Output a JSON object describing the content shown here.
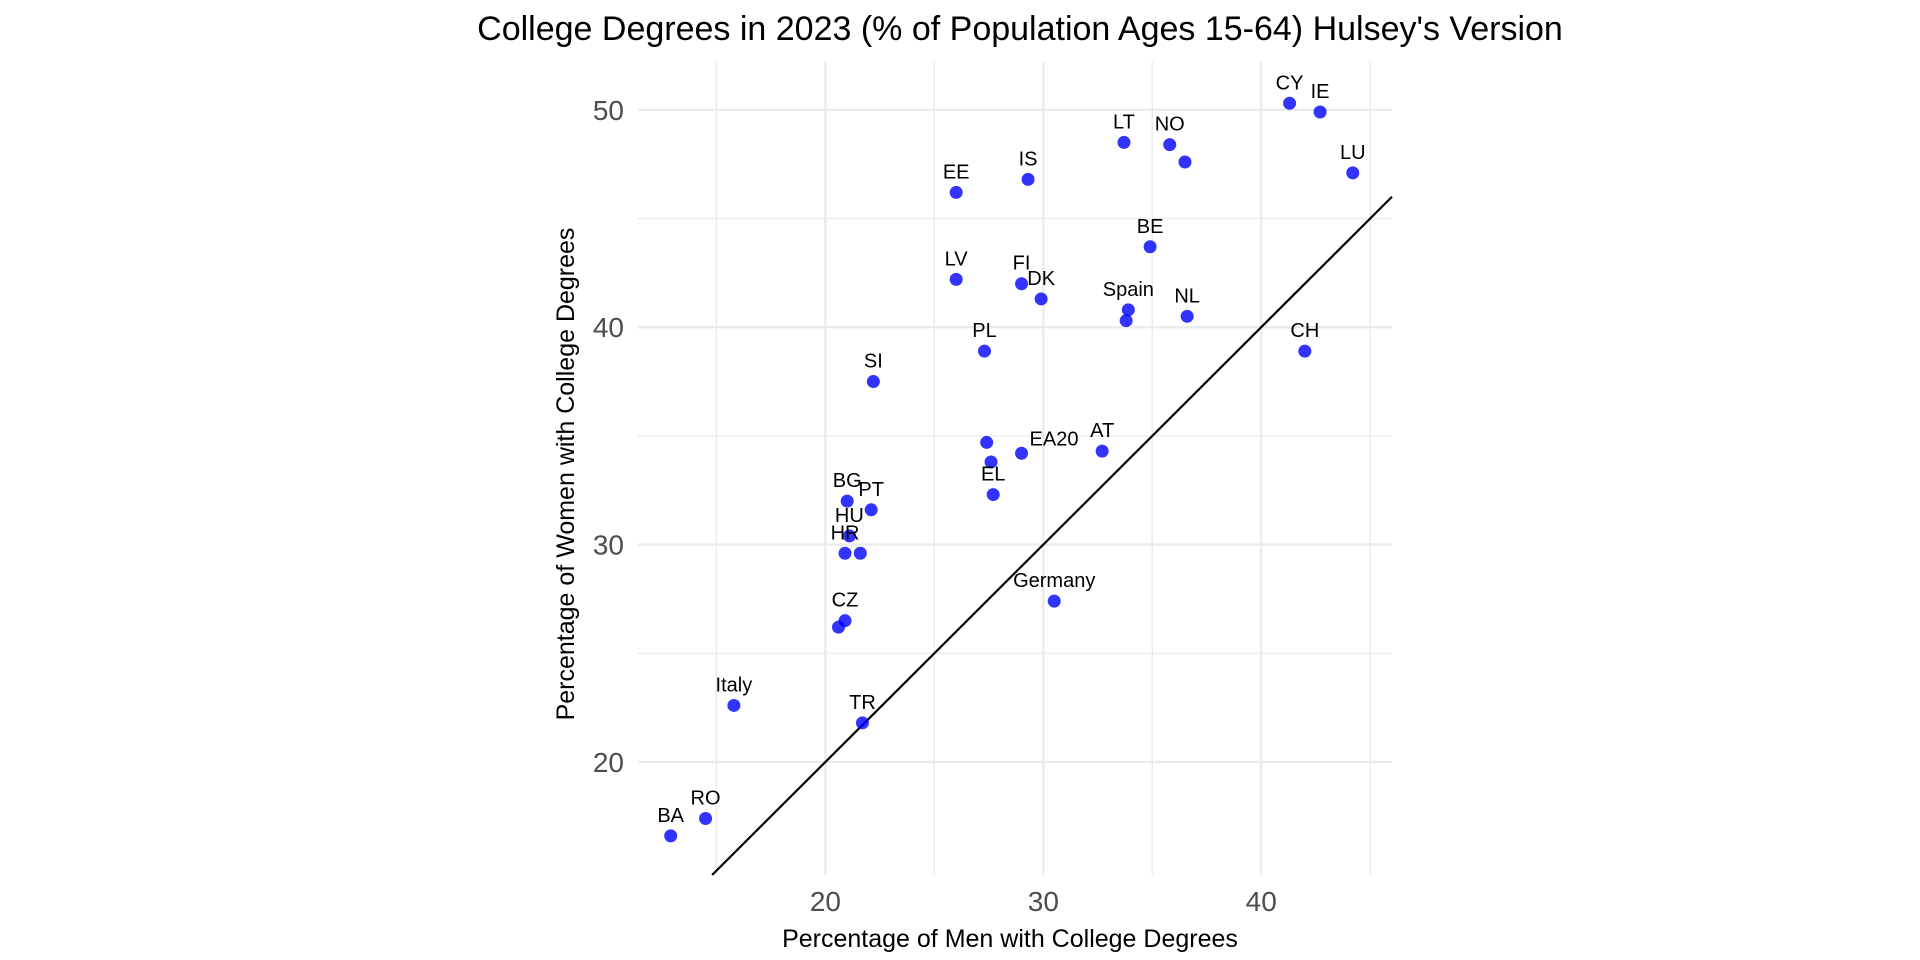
{
  "chart_data": {
    "type": "scatter",
    "title": "College Degrees in 2023 (% of Population Ages 15-64) Hulsey's Version",
    "xlabel": "Percentage of Men with College Degrees",
    "ylabel": "Percentage of Women with College Degrees",
    "xlim": [
      11.4,
      46.0
    ],
    "ylim": [
      14.8,
      52.2
    ],
    "x_ticks": [
      20,
      30,
      40
    ],
    "y_ticks": [
      20,
      30,
      40,
      50
    ],
    "x_tick_labels": [
      "20",
      "30",
      "40"
    ],
    "y_tick_labels": [
      "20",
      "30",
      "40",
      "50"
    ],
    "grid": true,
    "reference_line": {
      "slope": 1,
      "intercept": 0
    },
    "point_color": "#0000ff",
    "points": [
      {
        "label": "BA",
        "x": 12.9,
        "y": 16.6
      },
      {
        "label": "RO",
        "x": 14.5,
        "y": 17.4
      },
      {
        "label": "Italy",
        "x": 15.8,
        "y": 22.6
      },
      {
        "label": "TR",
        "x": 21.7,
        "y": 21.8
      },
      {
        "label": "CZ",
        "x": 20.9,
        "y": 26.5
      },
      {
        "label": "",
        "x": 20.6,
        "y": 26.2
      },
      {
        "label": "HR",
        "x": 20.9,
        "y": 29.6
      },
      {
        "label": "HU",
        "x": 21.1,
        "y": 30.4
      },
      {
        "label": "",
        "x": 21.6,
        "y": 29.6
      },
      {
        "label": "BG",
        "x": 21.0,
        "y": 32.0
      },
      {
        "label": "PT",
        "x": 22.1,
        "y": 31.6
      },
      {
        "label": "SI",
        "x": 22.2,
        "y": 37.5
      },
      {
        "label": "EL",
        "x": 27.7,
        "y": 32.3
      },
      {
        "label": "",
        "x": 27.6,
        "y": 33.8
      },
      {
        "label": "EA20",
        "x": 29.0,
        "y": 34.2
      },
      {
        "label": "",
        "x": 27.4,
        "y": 34.7
      },
      {
        "label": "AT",
        "x": 32.7,
        "y": 34.3
      },
      {
        "label": "Germany",
        "x": 30.5,
        "y": 27.4
      },
      {
        "label": "PL",
        "x": 27.3,
        "y": 38.9
      },
      {
        "label": "LV",
        "x": 26.0,
        "y": 42.2
      },
      {
        "label": "FI",
        "x": 29.0,
        "y": 42.0
      },
      {
        "label": "DK",
        "x": 29.9,
        "y": 41.3
      },
      {
        "label": "EE",
        "x": 26.0,
        "y": 46.2
      },
      {
        "label": "IS",
        "x": 29.3,
        "y": 46.8
      },
      {
        "label": "Spain",
        "x": 33.9,
        "y": 40.8
      },
      {
        "label": "",
        "x": 33.8,
        "y": 40.3
      },
      {
        "label": "NL",
        "x": 36.6,
        "y": 40.5
      },
      {
        "label": "BE",
        "x": 34.9,
        "y": 43.7
      },
      {
        "label": "LT",
        "x": 33.7,
        "y": 48.5
      },
      {
        "label": "NO",
        "x": 35.8,
        "y": 48.4
      },
      {
        "label": "",
        "x": 36.5,
        "y": 47.6
      },
      {
        "label": "CH",
        "x": 42.0,
        "y": 38.9
      },
      {
        "label": "CY",
        "x": 41.3,
        "y": 50.3
      },
      {
        "label": "IE",
        "x": 42.7,
        "y": 49.9
      },
      {
        "label": "LU",
        "x": 44.2,
        "y": 47.1
      }
    ]
  }
}
